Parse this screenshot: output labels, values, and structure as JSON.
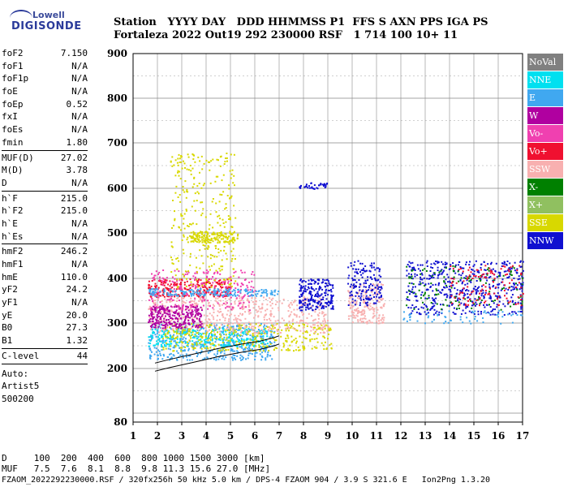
{
  "logo": {
    "line1": "Lowell",
    "line2": "DIGISONDE"
  },
  "header": {
    "labels": "Station   YYYY DAY   DDD HHMMSS P1  FFS S AXN PPS IGA PS",
    "values": "Fortaleza 2022 Out19 292 230000 RSF   1 714 100 10+ 11"
  },
  "params": {
    "group1": [
      {
        "name": "foF2",
        "value": "7.150"
      },
      {
        "name": "foF1",
        "value": "N/A"
      },
      {
        "name": "foF1p",
        "value": "N/A"
      },
      {
        "name": "foE",
        "value": "N/A"
      },
      {
        "name": "foEp",
        "value": "0.52"
      },
      {
        "name": "fxI",
        "value": "N/A"
      },
      {
        "name": "foEs",
        "value": "N/A"
      },
      {
        "name": "fmin",
        "value": "1.80"
      }
    ],
    "group2": [
      {
        "name": "MUF(D)",
        "value": "27.02"
      },
      {
        "name": "M(D)",
        "value": "3.78"
      },
      {
        "name": "D",
        "value": "N/A"
      }
    ],
    "group3": [
      {
        "name": "h`F",
        "value": "215.0"
      },
      {
        "name": "h`F2",
        "value": "215.0"
      },
      {
        "name": "h`E",
        "value": "N/A"
      },
      {
        "name": "h`Es",
        "value": "N/A"
      }
    ],
    "group4": [
      {
        "name": "hmF2",
        "value": "246.2"
      },
      {
        "name": "hmF1",
        "value": "N/A"
      },
      {
        "name": "hmE",
        "value": "110.0"
      },
      {
        "name": "yF2",
        "value": "24.2"
      },
      {
        "name": "yF1",
        "value": "N/A"
      },
      {
        "name": "yE",
        "value": "20.0"
      },
      {
        "name": "B0",
        "value": "27.3"
      },
      {
        "name": "B1",
        "value": "1.32"
      }
    ],
    "group5": [
      {
        "name": "C-level",
        "value": "44"
      }
    ],
    "extra": [
      "Auto:",
      "Artist5",
      "500200"
    ]
  },
  "legend": [
    {
      "label": "NoVal",
      "color": "#808080"
    },
    {
      "label": "NNE",
      "color": "#00e0f0"
    },
    {
      "label": "E",
      "color": "#40a8f0"
    },
    {
      "label": "W",
      "color": "#b000a0"
    },
    {
      "label": "Vo-",
      "color": "#f040b0"
    },
    {
      "label": "Vo+",
      "color": "#f01030"
    },
    {
      "label": "SSW",
      "color": "#f8b0b0"
    },
    {
      "label": "X-",
      "color": "#008000"
    },
    {
      "label": "X+",
      "color": "#90c060"
    },
    {
      "label": "SSE",
      "color": "#d8d800"
    },
    {
      "label": "NNW",
      "color": "#1010d0"
    }
  ],
  "footer": {
    "line1": "D     100  200  400  600  800 1000 1500 3000 [km]",
    "line2": "MUF   7.5  7.6  8.1  8.8  9.8 11.3 15.6 27.0 [MHz]",
    "line3": "FZAOM_2022292230000.RSF / 320fx256h 50 kHz 5.0 km / DPS-4 FZAOM 904 / 3.9 S 321.6 E   Ion2Png 1.3.20"
  },
  "chart_data": {
    "type": "scatter",
    "x_ticks": [
      "1",
      "2",
      "3",
      "4",
      "5",
      "6",
      "7",
      "8",
      "9",
      "10",
      "11",
      "12",
      "13",
      "14",
      "15",
      "16",
      "17"
    ],
    "y_ticks": [
      "900",
      "800",
      "700",
      "600",
      "500",
      "400",
      "300",
      "200",
      "80"
    ],
    "xlim": [
      1,
      17
    ],
    "ylim": [
      80,
      900
    ],
    "grid": true,
    "legend_position": "right",
    "clusters": [
      {
        "series": "E",
        "x": [
          1.6,
          6.8
        ],
        "y": [
          220,
          300
        ],
        "n": 520
      },
      {
        "series": "NNE",
        "x": [
          1.6,
          6.5
        ],
        "y": [
          250,
          290
        ],
        "n": 260
      },
      {
        "series": "SSE",
        "x": [
          2.2,
          9.2
        ],
        "y": [
          240,
          300
        ],
        "n": 360
      },
      {
        "series": "SSW",
        "x": [
          1.6,
          9.0
        ],
        "y": [
          280,
          360
        ],
        "n": 520
      },
      {
        "series": "W",
        "x": [
          1.6,
          3.8
        ],
        "y": [
          290,
          340
        ],
        "n": 280
      },
      {
        "series": "Vo+",
        "x": [
          1.6,
          5.0
        ],
        "y": [
          360,
          400
        ],
        "n": 260
      },
      {
        "series": "Vo-",
        "x": [
          1.6,
          6.0
        ],
        "y": [
          330,
          420
        ],
        "n": 240
      },
      {
        "series": "E",
        "x": [
          1.6,
          7.0
        ],
        "y": [
          362,
          378
        ],
        "n": 180
      },
      {
        "series": "NNW",
        "x": [
          7.8,
          9.2
        ],
        "y": [
          330,
          400
        ],
        "n": 220
      },
      {
        "series": "SSE",
        "x": [
          2.5,
          5.2
        ],
        "y": [
          380,
          680
        ],
        "n": 300
      },
      {
        "series": "SSE",
        "x": [
          3.3,
          5.3
        ],
        "y": [
          480,
          505
        ],
        "n": 160
      },
      {
        "series": "NNW",
        "x": [
          7.8,
          9.0
        ],
        "y": [
          600,
          615
        ],
        "n": 40
      },
      {
        "series": "SSW",
        "x": [
          9.8,
          11.3
        ],
        "y": [
          300,
          390
        ],
        "n": 200
      },
      {
        "series": "NNW",
        "x": [
          9.8,
          11.2
        ],
        "y": [
          340,
          440
        ],
        "n": 160
      },
      {
        "series": "NNW",
        "x": [
          12.2,
          17.0
        ],
        "y": [
          320,
          440
        ],
        "n": 520
      },
      {
        "series": "X-",
        "x": [
          12.2,
          17.0
        ],
        "y": [
          330,
          430
        ],
        "n": 120
      },
      {
        "series": "Vo+",
        "x": [
          14.0,
          17.0
        ],
        "y": [
          340,
          430
        ],
        "n": 120
      },
      {
        "series": "E",
        "x": [
          12.0,
          17.0
        ],
        "y": [
          300,
          330
        ],
        "n": 60
      }
    ],
    "trace": {
      "x": [
        1.9,
        2.5,
        3.5,
        4.5,
        5.5,
        6.2,
        6.8,
        7.0
      ],
      "y": [
        212,
        220,
        232,
        244,
        254,
        260,
        268,
        272
      ]
    }
  }
}
